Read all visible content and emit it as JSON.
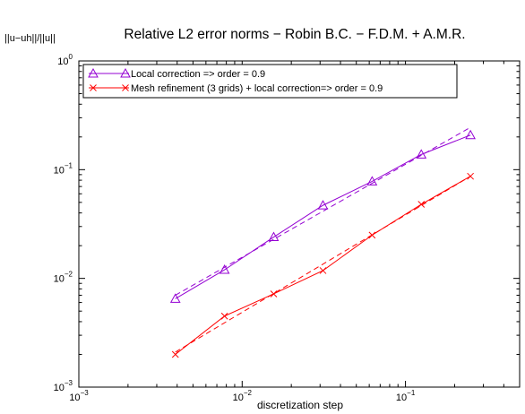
{
  "chart_data": {
    "type": "line",
    "title": "Relative L2 error norms − Robin B.C. − F.D.M. + A.M.R.",
    "xlabel": "discretization step",
    "ylabel": "||u−uh||/||u||",
    "xscale": "log",
    "yscale": "log",
    "xlim": [
      0.001,
      0.5
    ],
    "ylim": [
      0.001,
      1
    ],
    "xticks": [
      {
        "value": 0.001,
        "base": "10",
        "exp": "−3"
      },
      {
        "value": 0.01,
        "base": "10",
        "exp": "−2"
      },
      {
        "value": 0.1,
        "base": "10",
        "exp": "−1"
      }
    ],
    "yticks": [
      {
        "value": 0.001,
        "base": "10",
        "exp": "−3"
      },
      {
        "value": 0.01,
        "base": "10",
        "exp": "−2"
      },
      {
        "value": 0.1,
        "base": "10",
        "exp": "−1"
      },
      {
        "value": 1,
        "base": "10",
        "exp": "0"
      }
    ],
    "grid": false,
    "legend_position": "top-left",
    "series": [
      {
        "name": "Local correction => order = 0.9",
        "color": "#9400d3",
        "marker": "triangle",
        "x": [
          0.0039,
          0.0078,
          0.0156,
          0.03125,
          0.0625,
          0.125,
          0.25
        ],
        "y": [
          0.0065,
          0.012,
          0.024,
          0.047,
          0.078,
          0.138,
          0.208
        ],
        "fit": {
          "x": [
            0.0039,
            0.25
          ],
          "y": [
            0.007,
            0.245
          ]
        }
      },
      {
        "name": "Mesh refinement (3 grids) + local correction=> order = 0.9",
        "color": "#ff0000",
        "marker": "x",
        "x": [
          0.0039,
          0.0078,
          0.0156,
          0.03125,
          0.0625,
          0.125,
          0.25
        ],
        "y": [
          0.002,
          0.0045,
          0.0072,
          0.0118,
          0.025,
          0.048,
          0.087
        ],
        "fit": {
          "x": [
            0.0039,
            0.25
          ],
          "y": [
            0.0021,
            0.087
          ]
        }
      }
    ]
  }
}
